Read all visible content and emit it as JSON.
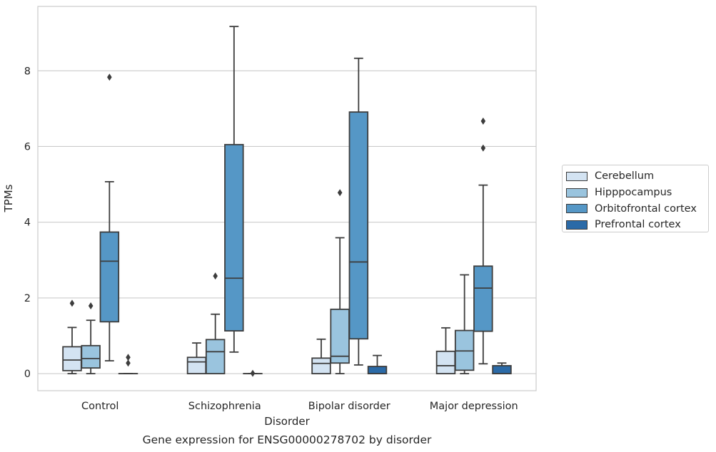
{
  "chart_data": {
    "type": "box",
    "title": "Gene expression for ENSG00000278702 by disorder",
    "xlabel": "Disorder",
    "ylabel": "TPMs",
    "ylim": [
      -0.45,
      9.7
    ],
    "yticks": [
      0,
      2,
      4,
      6,
      8
    ],
    "grid": "horizontal",
    "legend_position": "right",
    "categories": [
      "Control",
      "Schizophrenia",
      "Bipolar disorder",
      "Major depression"
    ],
    "series": [
      {
        "name": "Cerebellum",
        "color": "#d3e3f2",
        "boxes": [
          {
            "whisker_low": 0,
            "q1": 0.08,
            "median": 0.36,
            "q3": 0.71,
            "whisker_high": 1.22,
            "outliers": [
              1.86
            ]
          },
          {
            "whisker_low": 0,
            "q1": 0.0,
            "median": 0.31,
            "q3": 0.43,
            "whisker_high": 0.81,
            "outliers": []
          },
          {
            "whisker_low": 0,
            "q1": 0.0,
            "median": 0.27,
            "q3": 0.41,
            "whisker_high": 0.91,
            "outliers": []
          },
          {
            "whisker_low": 0,
            "q1": 0.0,
            "median": 0.21,
            "q3": 0.59,
            "whisker_high": 1.21,
            "outliers": []
          }
        ]
      },
      {
        "name": "Hipppocampus",
        "color": "#9ac4de",
        "boxes": [
          {
            "whisker_low": 0,
            "q1": 0.15,
            "median": 0.4,
            "q3": 0.74,
            "whisker_high": 1.41,
            "outliers": [
              1.79
            ]
          },
          {
            "whisker_low": 0,
            "q1": 0.0,
            "median": 0.58,
            "q3": 0.9,
            "whisker_high": 1.57,
            "outliers": [
              2.58
            ]
          },
          {
            "whisker_low": 0,
            "q1": 0.28,
            "median": 0.46,
            "q3": 1.7,
            "whisker_high": 3.59,
            "outliers": [
              4.78
            ]
          },
          {
            "whisker_low": 0,
            "q1": 0.09,
            "median": 0.6,
            "q3": 1.14,
            "whisker_high": 2.61,
            "outliers": []
          }
        ]
      },
      {
        "name": "Orbitofrontal cortex",
        "color": "#5597c6",
        "boxes": [
          {
            "whisker_low": 0.34,
            "q1": 1.37,
            "median": 2.97,
            "q3": 3.74,
            "whisker_high": 5.07,
            "outliers": [
              7.83
            ]
          },
          {
            "whisker_low": 0.57,
            "q1": 1.13,
            "median": 2.52,
            "q3": 6.05,
            "whisker_high": 9.17,
            "outliers": []
          },
          {
            "whisker_low": 0.23,
            "q1": 0.92,
            "median": 2.95,
            "q3": 6.91,
            "whisker_high": 8.33,
            "outliers": []
          },
          {
            "whisker_low": 0.26,
            "q1": 1.12,
            "median": 2.26,
            "q3": 2.84,
            "whisker_high": 4.98,
            "outliers": [
              5.96,
              6.67
            ]
          }
        ]
      },
      {
        "name": "Prefrontal cortex",
        "color": "#2b6aa7",
        "boxes": [
          {
            "whisker_low": 0,
            "q1": 0,
            "median": 0,
            "q3": 0,
            "whisker_high": 0,
            "outliers": [
              0.28,
              0.43
            ]
          },
          {
            "whisker_low": 0,
            "q1": 0,
            "median": 0,
            "q3": 0,
            "whisker_high": 0,
            "outliers": [
              0.01
            ]
          },
          {
            "whisker_low": 0,
            "q1": 0.0,
            "median": 0.0,
            "q3": 0.19,
            "whisker_high": 0.48,
            "outliers": []
          },
          {
            "whisker_low": 0,
            "q1": 0.0,
            "median": 0.0,
            "q3": 0.21,
            "whisker_high": 0.28,
            "outliers": []
          }
        ]
      }
    ]
  }
}
